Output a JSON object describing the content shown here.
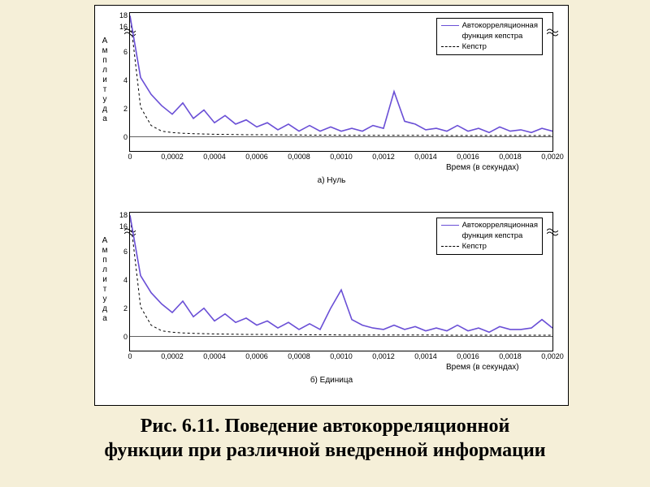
{
  "caption_line1": "Рис. 6.11. Поведение автокорреляционной",
  "caption_line2": "функции при различной внедренной информации",
  "figure": {
    "background_color": "#f5efd8",
    "block_bg": "#ffffff",
    "block_border": "#000000",
    "panel_gap_subtitle_fontsize": 10,
    "xlabel": "Время (в секундах)",
    "ylabel_chars": [
      "А",
      "м",
      "п",
      "л",
      "и",
      "т",
      "у",
      "д",
      "а"
    ],
    "xlim": [
      0,
      0.002
    ],
    "xtick_step": 0.0002,
    "xtick_labels": [
      "0",
      "0,0002",
      "0,0004",
      "0,0006",
      "0,0008",
      "0,0010",
      "0,0012",
      "0,0014",
      "0,0016",
      "0,0018",
      "0,0020"
    ],
    "lower_ylim": [
      -1,
      7
    ],
    "upper_ylim_visual": [
      15.5,
      18.5
    ],
    "ytick_lower": [
      0,
      2,
      4,
      6
    ],
    "ytick_upper": [
      16,
      18
    ],
    "grid_color": "#e0e0e0",
    "legend": {
      "items": [
        {
          "label_l1": "Автокорреляционная",
          "label_l2": "функция кепстра",
          "color": "#6a4fd6",
          "dash": "solid",
          "width": 1.6
        },
        {
          "label_l1": "Кепстр",
          "label_l2": null,
          "color": "#000000",
          "dash": "dashed",
          "width": 1.0
        }
      ],
      "border": "#000000",
      "bg": "#ffffff",
      "fontsize": 9.5
    },
    "panels": [
      {
        "key": "a",
        "subtitle": "а) Нуль",
        "acf_color": "#6a4fd6",
        "cep_color": "#000000",
        "acf_width": 1.6,
        "cep_width": 1.0,
        "cep_dash": "3,3",
        "x": [
          0,
          5e-05,
          0.0001,
          0.00015,
          0.0002,
          0.00025,
          0.0003,
          0.00035,
          0.0004,
          0.00045,
          0.0005,
          0.00055,
          0.0006,
          0.00065,
          0.0007,
          0.00075,
          0.0008,
          0.00085,
          0.0009,
          0.00095,
          0.001,
          0.00105,
          0.0011,
          0.00115,
          0.0012,
          0.00125,
          0.0013,
          0.00135,
          0.0014,
          0.00145,
          0.0015,
          0.00155,
          0.0016,
          0.00165,
          0.0017,
          0.00175,
          0.0018,
          0.00185,
          0.0019,
          0.00195,
          0.002
        ],
        "acf_y": [
          18,
          4.2,
          3.0,
          2.2,
          1.6,
          2.4,
          1.3,
          1.9,
          1.0,
          1.5,
          0.9,
          1.2,
          0.7,
          1.0,
          0.5,
          0.9,
          0.4,
          0.8,
          0.4,
          0.7,
          0.4,
          0.6,
          0.4,
          0.8,
          0.6,
          3.2,
          1.1,
          0.9,
          0.5,
          0.6,
          0.4,
          0.8,
          0.4,
          0.6,
          0.3,
          0.7,
          0.4,
          0.5,
          0.3,
          0.6,
          0.4
        ],
        "cep_y": [
          18,
          2.1,
          0.8,
          0.4,
          0.3,
          0.25,
          0.22,
          0.2,
          0.18,
          0.17,
          0.16,
          0.15,
          0.15,
          0.14,
          0.14,
          0.13,
          0.13,
          0.12,
          0.12,
          0.12,
          0.11,
          0.11,
          0.11,
          0.11,
          0.1,
          0.1,
          0.1,
          0.1,
          0.1,
          0.1,
          0.09,
          0.09,
          0.09,
          0.09,
          0.09,
          0.09,
          0.09,
          0.09,
          0.09,
          0.09,
          0.09
        ]
      },
      {
        "key": "b",
        "subtitle": "б) Единица",
        "acf_color": "#6a4fd6",
        "cep_color": "#000000",
        "acf_width": 1.6,
        "cep_width": 1.0,
        "cep_dash": "3,3",
        "x": [
          0,
          5e-05,
          0.0001,
          0.00015,
          0.0002,
          0.00025,
          0.0003,
          0.00035,
          0.0004,
          0.00045,
          0.0005,
          0.00055,
          0.0006,
          0.00065,
          0.0007,
          0.00075,
          0.0008,
          0.00085,
          0.0009,
          0.00095,
          0.001,
          0.00105,
          0.0011,
          0.00115,
          0.0012,
          0.00125,
          0.0013,
          0.00135,
          0.0014,
          0.00145,
          0.0015,
          0.00155,
          0.0016,
          0.00165,
          0.0017,
          0.00175,
          0.0018,
          0.00185,
          0.0019,
          0.00195,
          0.002
        ],
        "acf_y": [
          18,
          4.3,
          3.1,
          2.3,
          1.7,
          2.5,
          1.4,
          2.0,
          1.1,
          1.6,
          1.0,
          1.3,
          0.8,
          1.1,
          0.6,
          1.0,
          0.5,
          0.9,
          0.5,
          2.0,
          3.3,
          1.2,
          0.8,
          0.6,
          0.5,
          0.8,
          0.5,
          0.7,
          0.4,
          0.6,
          0.4,
          0.8,
          0.4,
          0.6,
          0.3,
          0.7,
          0.5,
          0.5,
          0.6,
          1.2,
          0.6
        ],
        "cep_y": [
          18,
          2.1,
          0.8,
          0.4,
          0.3,
          0.25,
          0.22,
          0.2,
          0.18,
          0.17,
          0.16,
          0.15,
          0.15,
          0.14,
          0.14,
          0.13,
          0.13,
          0.12,
          0.12,
          0.12,
          0.11,
          0.11,
          0.11,
          0.11,
          0.1,
          0.1,
          0.1,
          0.1,
          0.1,
          0.1,
          0.09,
          0.09,
          0.09,
          0.09,
          0.09,
          0.09,
          0.09,
          0.09,
          0.09,
          0.09,
          0.09
        ]
      }
    ]
  }
}
